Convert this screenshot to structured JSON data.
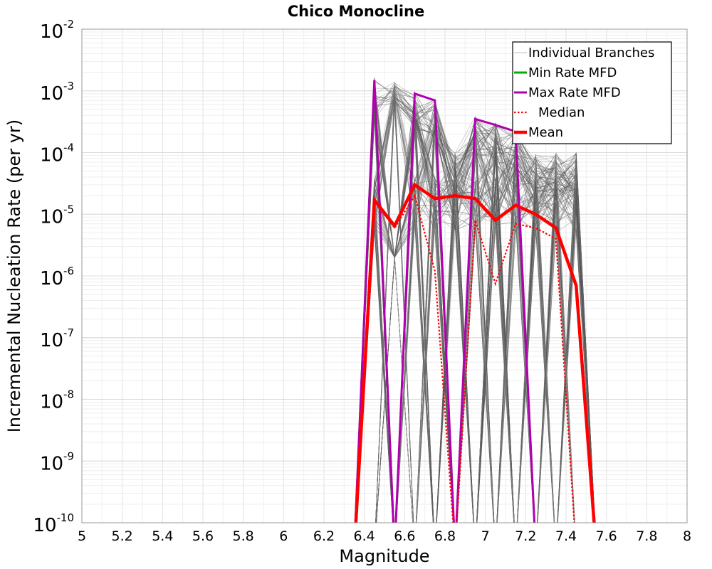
{
  "chart_data": {
    "type": "line",
    "title": "Chico Monocline",
    "xlabel": "Magnitude",
    "ylabel": "Incremental Nucleation Rate (per yr)",
    "xlim": [
      5,
      8
    ],
    "ylim": [
      1e-10,
      0.01
    ],
    "yscale": "log",
    "grid": true,
    "legend_position": "top-right",
    "x_ticks": [
      "5",
      "5.2",
      "5.4",
      "5.6",
      "5.8",
      "6",
      "6.2",
      "6.4",
      "6.6",
      "6.8",
      "7",
      "7.2",
      "7.4",
      "7.6",
      "7.8",
      "8"
    ],
    "y_ticks": [
      {
        "base": "10",
        "exp": "-10",
        "value": 1e-10
      },
      {
        "base": "10",
        "exp": "-9",
        "value": 1e-09
      },
      {
        "base": "10",
        "exp": "-8",
        "value": 1e-08
      },
      {
        "base": "10",
        "exp": "-7",
        "value": 1e-07
      },
      {
        "base": "10",
        "exp": "-6",
        "value": 1e-06
      },
      {
        "base": "10",
        "exp": "-5",
        "value": 1e-05
      },
      {
        "base": "10",
        "exp": "-4",
        "value": 0.0001
      },
      {
        "base": "10",
        "exp": "-3",
        "value": 0.001
      },
      {
        "base": "10",
        "exp": "-2",
        "value": 0.01
      }
    ],
    "x_points": [
      6.35,
      6.45,
      6.55,
      6.65,
      6.75,
      6.85,
      6.95,
      7.05,
      7.15,
      7.25,
      7.35,
      7.45,
      7.55
    ],
    "series": [
      {
        "name": "Individual Branches",
        "color": "#4d4d4d",
        "style": "thin-band",
        "note": "many logic-tree branch MFDs rendered as a band"
      },
      {
        "name": "Min Rate MFD",
        "color": "#00b000",
        "style": "solid",
        "values": [
          0,
          0.0013,
          0,
          0,
          0,
          0,
          0,
          0,
          0,
          0,
          0,
          0,
          0
        ]
      },
      {
        "name": "Max Rate MFD",
        "color": "#b000b0",
        "style": "solid",
        "values": [
          0,
          0.0015,
          0,
          0.0009,
          0.0007,
          0,
          0.00035,
          0.00028,
          0.00022,
          0,
          0,
          0,
          0
        ]
      },
      {
        "name": "Median",
        "color": "#ff0000",
        "style": "dotted",
        "values": [
          0,
          1.6e-05,
          6e-06,
          2e-05,
          1.2e-06,
          0,
          8e-06,
          7.5e-07,
          7e-06,
          6e-06,
          4e-06,
          0,
          0
        ]
      },
      {
        "name": "Mean",
        "color": "#ff0000",
        "style": "thick",
        "values": [
          0,
          1.7e-05,
          6.5e-06,
          3e-05,
          1.8e-05,
          2e-05,
          1.8e-05,
          8e-06,
          1.4e-05,
          1e-05,
          6e-06,
          7e-07,
          0
        ]
      }
    ]
  }
}
